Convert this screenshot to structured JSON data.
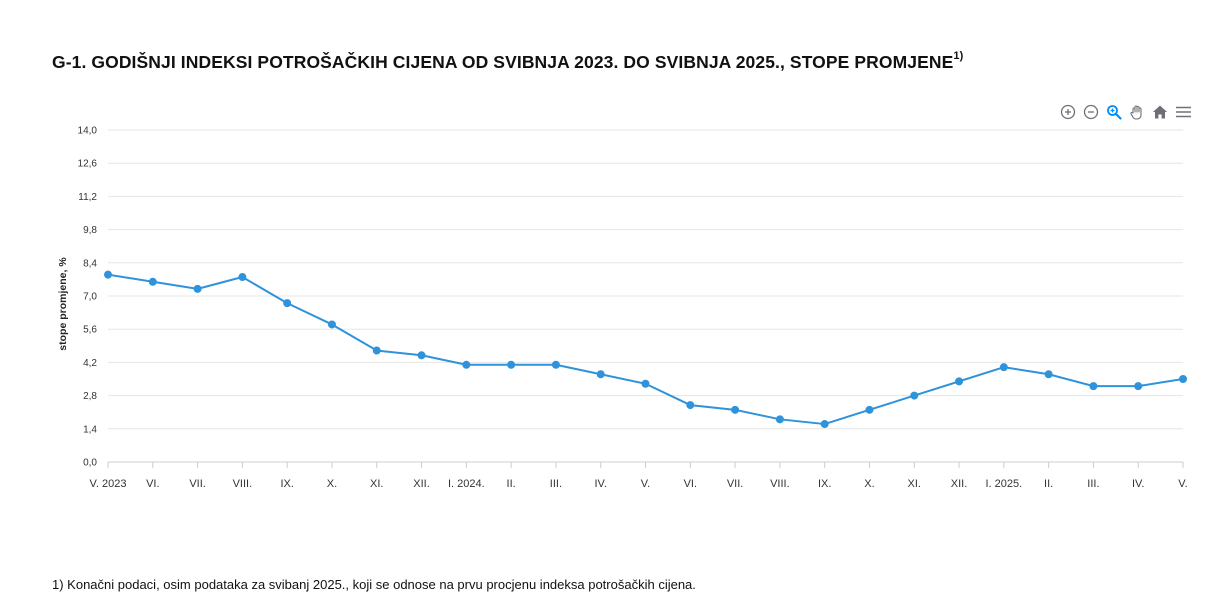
{
  "title": {
    "text": "G-1. GODIŠNJI INDEKSI POTROŠAČKIH CIJENA OD SVIBNJA 2023. DO SVIBNJA 2025., STOPE PROMJENE",
    "note_mark": "1)"
  },
  "toolbar": {
    "zoom_in": "zoom-in-icon",
    "zoom_out": "zoom-out-icon",
    "zoom_select": "magnifier-icon",
    "pan": "hand-icon",
    "reset": "home-icon",
    "menu": "menu-icon"
  },
  "footnote": "1) Konačni podaci, osim podataka za svibanj 2025., koji se odnose na prvu procjenu indeksa potrošačkih cijena.",
  "colors": {
    "line": "#2E93DB",
    "grid": "#e6e6e6",
    "axis": "#cccccc"
  },
  "chart_data": {
    "type": "line",
    "title": "G-1. GODIŠNJI INDEKSI POTROŠAČKIH CIJENA OD SVIBNJA 2023. DO SVIBNJA 2025., STOPE PROMJENE",
    "xlabel": "",
    "ylabel": "stope promjene, %",
    "ylim": [
      0,
      14
    ],
    "yticks": [
      "0,0",
      "1,4",
      "2,8",
      "4,2",
      "5,6",
      "7,0",
      "8,4",
      "9,8",
      "11,2",
      "12,6",
      "14,0"
    ],
    "grid": true,
    "categories": [
      "V. 2023",
      "VI.",
      "VII.",
      "VIII.",
      "IX.",
      "X.",
      "XI.",
      "XII.",
      "I. 2024.",
      "II.",
      "III.",
      "IV.",
      "V.",
      "VI.",
      "VII.",
      "VIII.",
      "IX.",
      "X.",
      "XI.",
      "XII.",
      "I. 2025.",
      "II.",
      "III.",
      "IV.",
      "V."
    ],
    "series": [
      {
        "name": "stope promjene",
        "values": [
          7.9,
          7.6,
          7.3,
          7.8,
          6.7,
          5.8,
          4.7,
          4.5,
          4.1,
          4.1,
          4.1,
          3.7,
          3.3,
          2.4,
          2.2,
          1.8,
          1.6,
          2.2,
          2.8,
          3.4,
          4.0,
          3.7,
          3.2,
          3.2,
          3.5
        ]
      }
    ]
  }
}
